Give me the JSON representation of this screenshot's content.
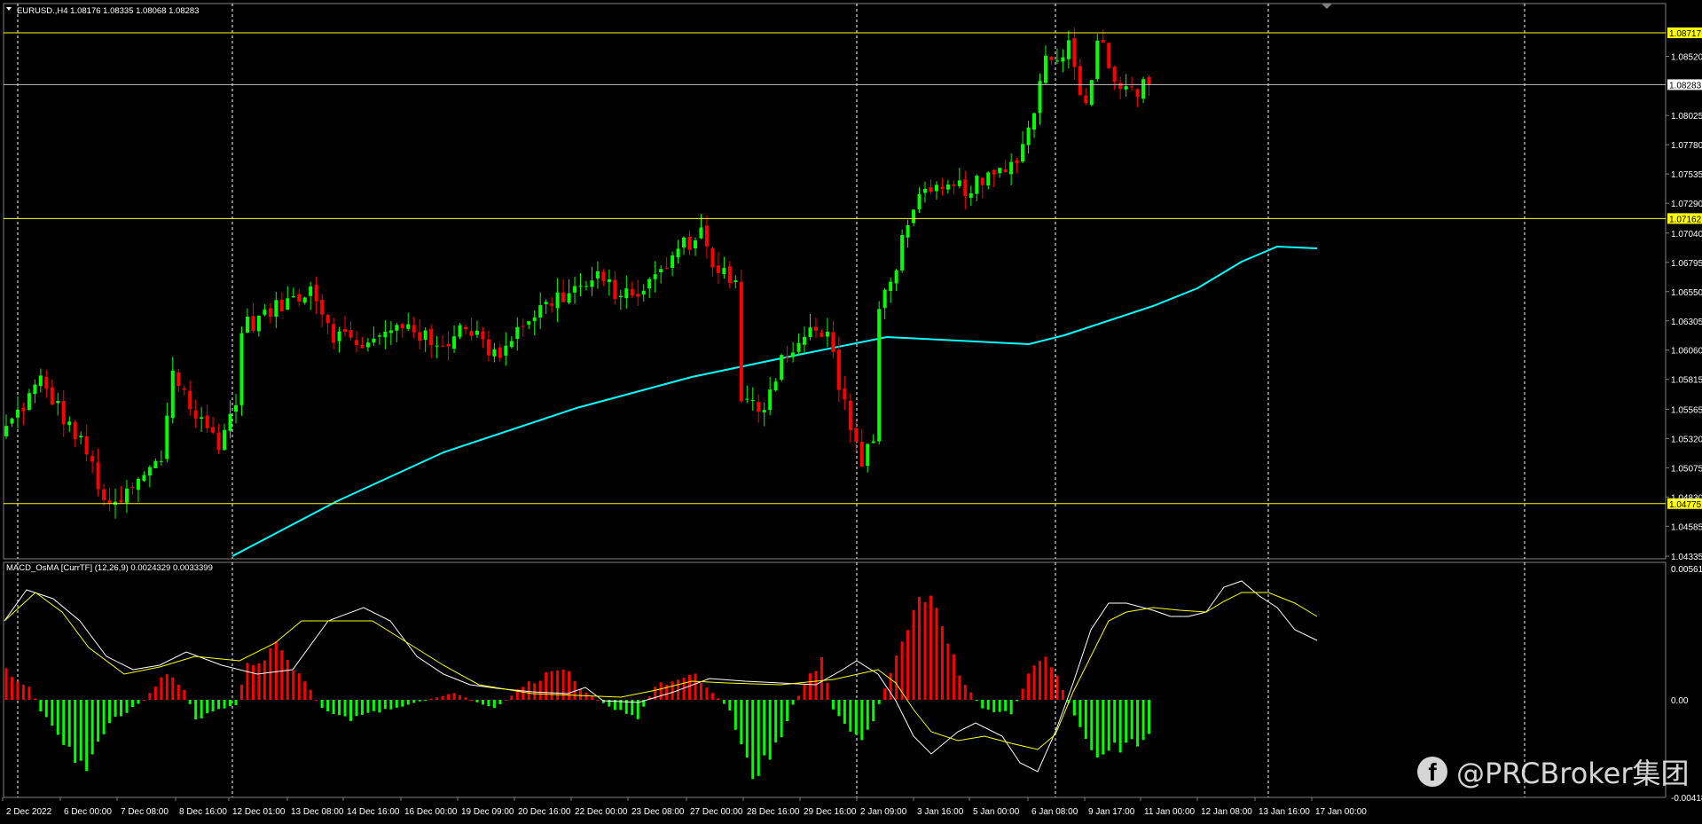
{
  "main_chart": {
    "header": "EURUSD.,H4  1.08176 1.08335 1.08068 1.08283",
    "price_labels": [
      "1.08520",
      "1.08025",
      "1.07780",
      "1.07535",
      "1.07290",
      "1.07040",
      "1.06795",
      "1.06550",
      "1.06305",
      "1.06060",
      "1.05815",
      "1.05565",
      "1.05320",
      "1.05075",
      "1.04830",
      "1.04585",
      "1.04335"
    ],
    "hlines": [
      {
        "label": "1.08717",
        "color": "#ffff00"
      },
      {
        "label": "1.08283",
        "color": "#c0c0c0"
      },
      {
        "label": "1.07162",
        "color": "#ffff00"
      },
      {
        "label": "1.04775",
        "color": "#ffff00"
      }
    ]
  },
  "indicator": {
    "header": "MACD_OsMA [CurrTF] (12,26,9) 0.0024329 0.0033399",
    "scale_labels": [
      "0.0056121",
      "0.00",
      "-0.004180"
    ]
  },
  "time_labels": [
    "2 Dec 2022",
    "6 Dec 00:00",
    "7 Dec 08:00",
    "8 Dec 16:00",
    "12 Dec 01:00",
    "13 Dec 08:00",
    "14 Dec 16:00",
    "16 Dec 00:00",
    "19 Dec 09:00",
    "20 Dec 16:00",
    "22 Dec 00:00",
    "23 Dec 08:00",
    "27 Dec 00:00",
    "28 Dec 16:00",
    "29 Dec 16:00",
    "2 Jan 09:00",
    "3 Jan 16:00",
    "5 Jan 00:00",
    "6 Jan 08:00",
    "9 Jan 17:00",
    "11 Jan 00:00",
    "12 Jan 08:00",
    "13 Jan 16:00",
    "17 Jan 00:00"
  ],
  "watermark": {
    "icon": "facebook-icon",
    "text": "@PRCBroker集团"
  },
  "colors": {
    "bull": "#00ff00",
    "bear": "#ff0000",
    "ma": "#00ffff",
    "signal": "#ffff00",
    "macd": "#ffffff",
    "grid": "#ffffff",
    "frame": "#808080"
  }
}
